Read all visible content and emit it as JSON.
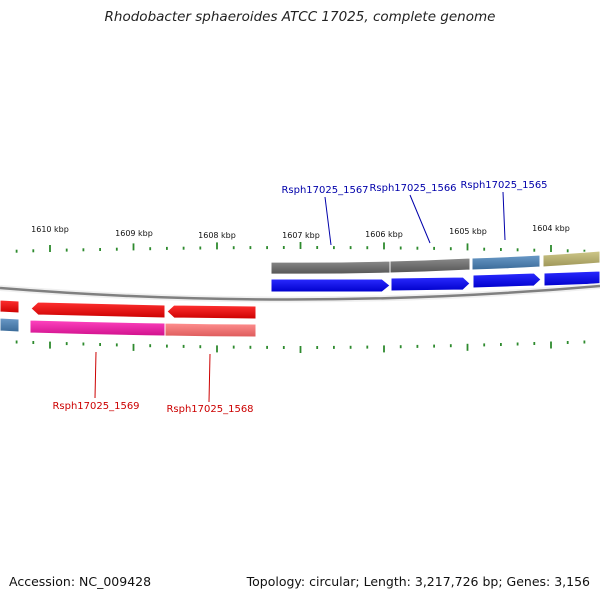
{
  "title": "Rhodobacter sphaeroides ATCC 17025, complete genome",
  "footer": {
    "accession": "Accession: NC_009428",
    "summary": "Topology: circular; Length: 3,217,726 bp; Genes: 3,156"
  },
  "scale_labels": [
    "1610 kbp",
    "1609 kbp",
    "1608 kbp",
    "1607 kbp",
    "1606 kbp",
    "1605 kbp",
    "1604 kbp"
  ],
  "gene_labels": {
    "top": [
      "Rsph17025_1567",
      "Rsph17025_1566",
      "Rsph17025_1565"
    ],
    "bottom": [
      "Rsph17025_1569",
      "Rsph17025_1568"
    ]
  },
  "colors": {
    "tick": "#2e8b2e",
    "backbone": "#808080",
    "forward_cds": "#0000ee",
    "reverse_cds": "#ee0000",
    "gene_gray": "#6e6e6e",
    "gene_steelblue": "#4a7fb0",
    "gene_olive": "#b5ad6a",
    "gene_pink": "#ee22aa",
    "gene_salmon": "#ee7070"
  }
}
